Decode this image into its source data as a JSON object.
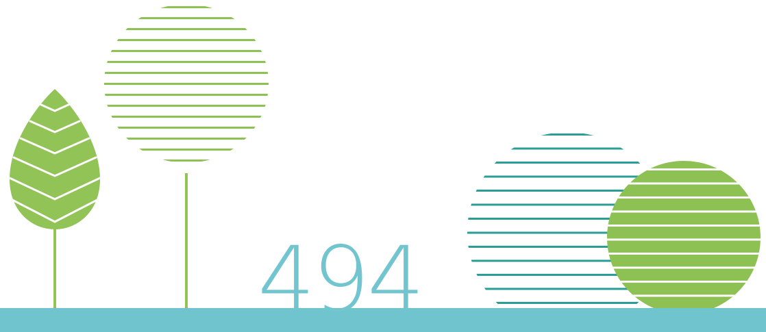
{
  "page_number": "494",
  "colors": {
    "leaf_green": "#92C357",
    "stripe_green": "#8DC153",
    "teal_stripes": "#2A9D96",
    "ground_band": "#70C4CD",
    "number_color": "#72C5CE",
    "background": "#FFFFFF"
  },
  "icons": [
    "leaf-tree-icon",
    "striped-round-tree-icon",
    "striped-teal-circle",
    "striped-green-circle"
  ]
}
